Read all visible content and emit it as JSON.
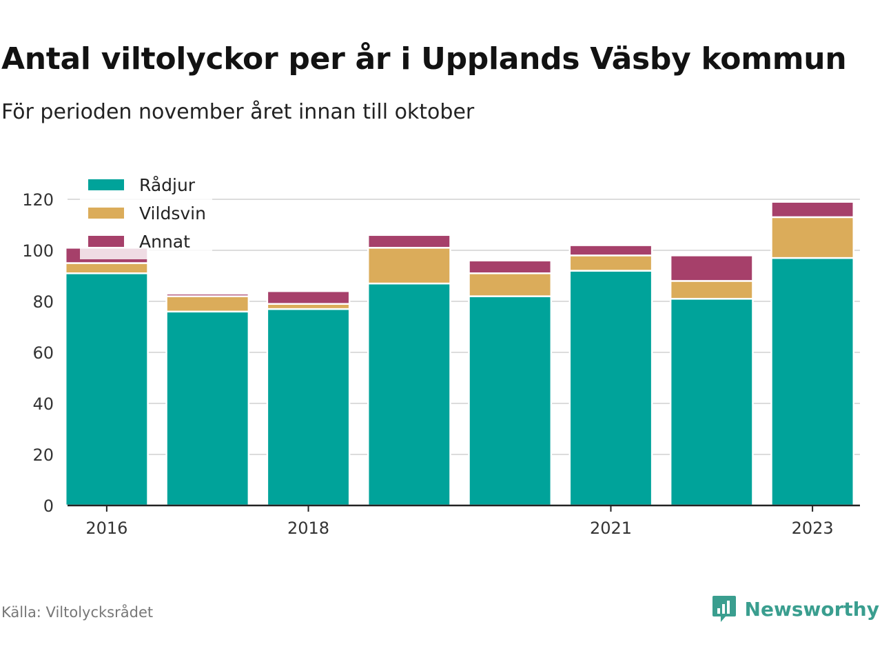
{
  "title": "Antal viltolyckor per år i Upplands Väsby kommun",
  "subtitle": "För perioden november året innan till oktober",
  "source": "Källa: Viltolycksrådet",
  "brand": {
    "name": "Newsworthy",
    "icon": "newsworthy-logo-icon",
    "color": "#3a9e8f"
  },
  "chart_data": {
    "type": "bar",
    "stacked": true,
    "categories": [
      "2016",
      "2017",
      "2018",
      "2019",
      "2020",
      "2021",
      "2022",
      "2023"
    ],
    "x_tick_labels": [
      "2016",
      "2018",
      "2021",
      "2023"
    ],
    "series": [
      {
        "name": "Rådjur",
        "color": "#00a39a",
        "values": [
          91,
          76,
          77,
          87,
          82,
          92,
          81,
          97
        ]
      },
      {
        "name": "Vildsvin",
        "color": "#dbac5a",
        "values": [
          4,
          6,
          2,
          14,
          9,
          6,
          7,
          16
        ]
      },
      {
        "name": "Annat",
        "color": "#a6406a",
        "values": [
          6,
          1,
          5,
          5,
          5,
          4,
          10,
          6
        ]
      }
    ],
    "y_ticks": [
      0,
      20,
      40,
      60,
      80,
      100,
      120
    ],
    "ylim": [
      0,
      120
    ],
    "grid": true,
    "legend": "top-left"
  }
}
